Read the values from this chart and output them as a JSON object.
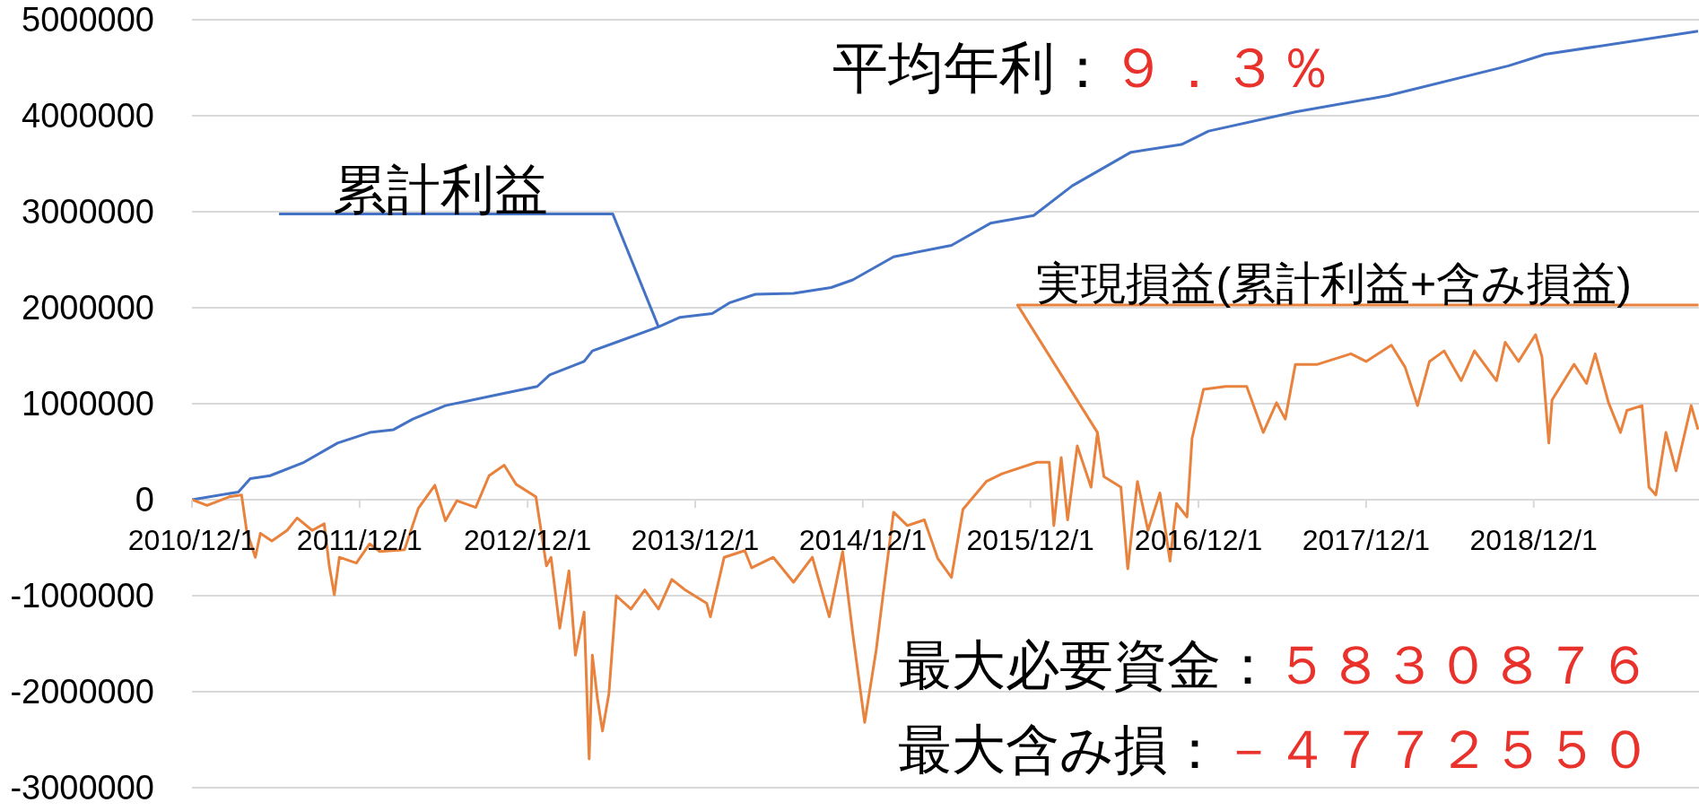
{
  "chart_data": {
    "type": "line",
    "series": [
      {
        "color": "#4472c4",
        "x": [
          "2010-12-01",
          "2011-03-12",
          "2011-04-07",
          "2011-05-20",
          "2011-08-02",
          "2011-10-14",
          "2011-12-23",
          "2012-02-13",
          "2012-03-26",
          "2012-06-05",
          "2012-10-03",
          "2012-12-22",
          "2013-01-18",
          "2013-04-03",
          "2013-04-21",
          "2013-06-12",
          "2013-09-12",
          "2013-10-29",
          "2014-01-07",
          "2014-02-13",
          "2014-04-11",
          "2014-07-03",
          "2014-09-23",
          "2014-11-09",
          "2015-02-06",
          "2015-06-12",
          "2015-09-05",
          "2015-12-08",
          "2016-03-01",
          "2016-07-07",
          "2016-10-25",
          "2016-12-23",
          "2017-06-30",
          "2018-01-18",
          "2018-10-07",
          "2018-12-26",
          "2019-11-24"
        ],
        "values": [
          0,
          80000,
          220000,
          250000,
          390000,
          590000,
          700000,
          730000,
          840000,
          980000,
          1100000,
          1180000,
          1300000,
          1440000,
          1550000,
          1640000,
          1800000,
          1900000,
          1940000,
          2050000,
          2140000,
          2150000,
          2210000,
          2290000,
          2530000,
          2650000,
          2880000,
          2960000,
          3270000,
          3620000,
          3700000,
          3840000,
          4040000,
          4210000,
          4520000,
          4640000,
          4880000
        ]
      },
      {
        "color": "#e8823c",
        "x": [
          "2010-12-01",
          "2011-01-03",
          "2011-02-20",
          "2011-03-19",
          "2011-03-30",
          "2011-04-18",
          "2011-04-29",
          "2011-05-24",
          "2011-06-26",
          "2011-07-18",
          "2011-08-20",
          "2011-09-15",
          "2011-09-26",
          "2011-10-07",
          "2011-10-18",
          "2011-11-24",
          "2011-12-23",
          "2012-01-14",
          "2012-03-08",
          "2012-04-07",
          "2012-05-13",
          "2012-06-05",
          "2012-06-30",
          "2012-08-10",
          "2012-09-08",
          "2012-10-11",
          "2012-11-06",
          "2012-12-19",
          "2013-01-11",
          "2013-01-21",
          "2013-02-09",
          "2013-03-01",
          "2013-03-15",
          "2013-04-03",
          "2013-04-14",
          "2013-04-21",
          "2013-05-02",
          "2013-05-13",
          "2013-05-27",
          "2013-06-12",
          "2013-07-14",
          "2013-08-13",
          "2013-09-12",
          "2013-10-11",
          "2013-11-09",
          "2013-12-26",
          "2014-01-03",
          "2014-02-02",
          "2014-03-19",
          "2014-04-03",
          "2014-05-20",
          "2014-07-03",
          "2014-08-13",
          "2014-09-19",
          "2014-10-18",
          "2014-11-09",
          "2014-12-05",
          "2014-12-30",
          "2015-01-18",
          "2015-02-06",
          "2015-03-08",
          "2015-04-14",
          "2015-05-13",
          "2015-06-12",
          "2015-07-07",
          "2015-08-27",
          "2015-09-30",
          "2015-12-15",
          "2016-01-11",
          "2016-01-21",
          "2016-02-06",
          "2016-02-20",
          "2016-03-12",
          "2016-04-11",
          "2016-04-25",
          "2016-05-09",
          "2016-06-15",
          "2016-06-30",
          "2016-07-21",
          "2016-08-13",
          "2016-09-08",
          "2016-09-30",
          "2016-10-14",
          "2016-11-06",
          "2016-11-17",
          "2016-12-12",
          "2017-01-29",
          "2017-03-16",
          "2017-04-21",
          "2017-05-20",
          "2017-06-08",
          "2017-06-30",
          "2017-08-17",
          "2017-10-29",
          "2017-12-01",
          "2018-01-25",
          "2018-02-24",
          "2018-03-23",
          "2018-04-18",
          "2018-05-20",
          "2018-06-26",
          "2018-07-25",
          "2018-09-11",
          "2018-09-30",
          "2018-10-29",
          "2018-12-05",
          "2018-12-19",
          "2019-01-03",
          "2019-01-10",
          "2019-02-27",
          "2019-03-26",
          "2019-04-14",
          "2019-05-13",
          "2019-06-08",
          "2019-06-22",
          "2019-07-25",
          "2019-08-09",
          "2019-08-24",
          "2019-09-15",
          "2019-10-07",
          "2019-11-09",
          "2019-11-24"
        ],
        "values": [
          0,
          -60000,
          30000,
          50000,
          -320000,
          -600000,
          -350000,
          -430000,
          -320000,
          -190000,
          -320000,
          -250000,
          -690000,
          -990000,
          -600000,
          -660000,
          -460000,
          -540000,
          -520000,
          -90000,
          150000,
          -220000,
          -10000,
          -80000,
          250000,
          360000,
          160000,
          30000,
          -690000,
          -600000,
          -1340000,
          -740000,
          -1620000,
          -1170000,
          -2700000,
          -1620000,
          -2070000,
          -2410000,
          -2020000,
          -1000000,
          -1140000,
          -940000,
          -1140000,
          -830000,
          -940000,
          -1080000,
          -1220000,
          -600000,
          -530000,
          -710000,
          -600000,
          -860000,
          -600000,
          -1220000,
          -540000,
          -1390000,
          -2320000,
          -1570000,
          -840000,
          -130000,
          -270000,
          -210000,
          -610000,
          -810000,
          -100000,
          190000,
          270000,
          390000,
          390000,
          -270000,
          440000,
          -210000,
          560000,
          130000,
          700000,
          240000,
          130000,
          -720000,
          190000,
          -320000,
          70000,
          -640000,
          -40000,
          -180000,
          640000,
          1150000,
          1180000,
          1180000,
          700000,
          1010000,
          840000,
          1410000,
          1410000,
          1520000,
          1440000,
          1610000,
          1380000,
          980000,
          1440000,
          1550000,
          1240000,
          1550000,
          1240000,
          1640000,
          1440000,
          1720000,
          1490000,
          590000,
          1040000,
          1410000,
          1210000,
          1520000,
          1010000,
          700000,
          930000,
          980000,
          130000,
          50000,
          700000,
          300000,
          980000,
          730000
        ]
      }
    ],
    "xlim": [
      "2010-12-01",
      "2019-11-26"
    ],
    "xticks": [
      {
        "value": "2010-12-01",
        "label": "2010/12/1"
      },
      {
        "value": "2011-12-01",
        "label": "2011/12/1"
      },
      {
        "value": "2012-12-01",
        "label": "2012/12/1"
      },
      {
        "value": "2013-12-01",
        "label": "2013/12/1"
      },
      {
        "value": "2014-12-01",
        "label": "2014/12/1"
      },
      {
        "value": "2015-12-01",
        "label": "2015/12/1"
      },
      {
        "value": "2016-12-01",
        "label": "2016/12/1"
      },
      {
        "value": "2017-12-01",
        "label": "2017/12/1"
      },
      {
        "value": "2018-12-01",
        "label": "2018/12/1"
      }
    ],
    "ylim": [
      -3000000,
      5000000
    ],
    "yticks": [
      -3000000,
      -2000000,
      -1000000,
      0,
      1000000,
      2000000,
      3000000,
      4000000,
      5000000
    ],
    "grid": "y",
    "annotations": [
      {
        "text": "累計利益",
        "x": "2013-09-12",
        "y": 1800000
      },
      "平均年利：９．３％",
      {
        "text": "実現損益(累計利益+含み損益)",
        "x": "2016-04-25",
        "y": 700000
      },
      "最大必要資金：５８３０８７６",
      "最大含み損：－４７７２５５０"
    ]
  }
}
